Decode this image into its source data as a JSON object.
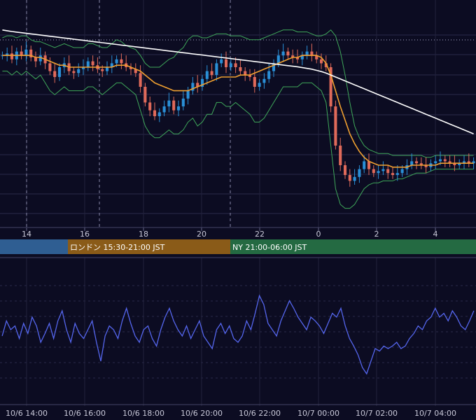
{
  "chart_data": [
    {
      "type": "candlestick",
      "panel": "price",
      "x_ticks": [
        "14",
        "16",
        "18",
        "20",
        "22",
        "0",
        "2",
        "4"
      ],
      "colors": {
        "up": "#2a8fd6",
        "down": "#e06a5a",
        "bollinger": "#3fa85a",
        "ma_short": "#f0a030",
        "ma_long": "#ffffff",
        "background": "#0c0c22",
        "grid": "#2a2a4a"
      },
      "y_range_rel": [
        0,
        100
      ],
      "series": [
        {
          "name": "close",
          "values": [
            86,
            87,
            84,
            88,
            86,
            89,
            85,
            83,
            86,
            82,
            78,
            75,
            80,
            82,
            78,
            77,
            79,
            80,
            83,
            81,
            79,
            78,
            80,
            82,
            84,
            82,
            80,
            79,
            77,
            70,
            62,
            58,
            55,
            57,
            60,
            63,
            58,
            60,
            64,
            68,
            72,
            70,
            74,
            78,
            76,
            82,
            84,
            80,
            82,
            80,
            78,
            76,
            75,
            70,
            72,
            74,
            78,
            82,
            86,
            88,
            86,
            85,
            84,
            86,
            88,
            86,
            84,
            82,
            80,
            60,
            40,
            30,
            25,
            22,
            24,
            28,
            32,
            28,
            26,
            27,
            28,
            26,
            25,
            26,
            28,
            30,
            32,
            31,
            30,
            29,
            31,
            32,
            33,
            32,
            31,
            30,
            31,
            32,
            31,
            32
          ]
        },
        {
          "name": "bb_upper",
          "values": [
            95,
            96,
            96,
            95,
            96,
            96,
            94,
            93,
            93,
            92,
            91,
            90,
            91,
            92,
            91,
            90,
            90,
            90,
            92,
            92,
            91,
            90,
            90,
            92,
            94,
            93,
            91,
            90,
            89,
            86,
            82,
            80,
            80,
            80,
            82,
            84,
            85,
            88,
            90,
            94,
            96,
            96,
            95,
            95,
            96,
            97,
            97,
            97,
            96,
            96,
            96,
            95,
            94,
            94,
            94,
            95,
            96,
            97,
            98,
            99,
            99,
            99,
            98,
            98,
            98,
            97,
            96,
            96,
            97,
            99,
            96,
            88,
            76,
            62,
            50,
            44,
            40,
            38,
            37,
            36,
            36,
            36,
            35,
            35,
            35,
            35,
            35,
            35,
            35,
            34,
            34,
            35,
            35,
            35,
            35,
            35,
            35,
            35,
            35,
            35
          ]
        },
        {
          "name": "bb_lower",
          "values": [
            78,
            78,
            76,
            78,
            76,
            78,
            76,
            74,
            76,
            72,
            68,
            66,
            68,
            70,
            68,
            68,
            68,
            68,
            70,
            70,
            68,
            66,
            68,
            70,
            72,
            72,
            70,
            68,
            66,
            58,
            50,
            46,
            44,
            44,
            46,
            48,
            46,
            46,
            48,
            52,
            54,
            50,
            52,
            56,
            56,
            62,
            62,
            60,
            60,
            62,
            60,
            58,
            56,
            52,
            52,
            54,
            58,
            62,
            66,
            70,
            70,
            70,
            70,
            72,
            72,
            72,
            70,
            68,
            62,
            40,
            18,
            10,
            8,
            8,
            10,
            14,
            18,
            20,
            21,
            21,
            22,
            22,
            22,
            23,
            23,
            24,
            25,
            26,
            26,
            26,
            27,
            28,
            28,
            28,
            28,
            28,
            28,
            28,
            28,
            28
          ]
        },
        {
          "name": "ma_short",
          "values": [
            86,
            86,
            86,
            86,
            86,
            86,
            86,
            85,
            85,
            84,
            83,
            82,
            81,
            81,
            80,
            80,
            80,
            80,
            80,
            80,
            80,
            80,
            80,
            80,
            81,
            81,
            81,
            80,
            79,
            78,
            76,
            74,
            72,
            71,
            70,
            69,
            68,
            68,
            68,
            68,
            69,
            70,
            71,
            72,
            73,
            74,
            75,
            75,
            75,
            75,
            76,
            76,
            76,
            77,
            78,
            79,
            80,
            81,
            82,
            83,
            84,
            85,
            85,
            86,
            86,
            86,
            86,
            85,
            82,
            76,
            68,
            60,
            53,
            46,
            41,
            37,
            34,
            32,
            31,
            30,
            30,
            30,
            29,
            29,
            29,
            29,
            30,
            30,
            30,
            30,
            30,
            30,
            31,
            31,
            31,
            31,
            31,
            31,
            31,
            31
          ]
        },
        {
          "name": "ma_long",
          "values": [
            99,
            98.6,
            98.2,
            97.9,
            97.6,
            97.3,
            97,
            96.7,
            96.4,
            96.1,
            95.8,
            95.5,
            95.2,
            94.9,
            94.6,
            94.3,
            94,
            93.7,
            93.4,
            93.1,
            92.8,
            92.5,
            92.2,
            91.9,
            91.6,
            91.3,
            91,
            90.7,
            90.4,
            90.1,
            89.8,
            89.5,
            89.2,
            88.9,
            88.6,
            88.3,
            88,
            87.7,
            87.4,
            87.1,
            86.8,
            86.5,
            86.2,
            85.9,
            85.6,
            85.3,
            85,
            84.7,
            84.4,
            84.1,
            83.8,
            83.5,
            83.2,
            82.9,
            82.6,
            82.3,
            82,
            81.7,
            81.4,
            81.1,
            80.8,
            80.5,
            80.2,
            79.8,
            79.4,
            79,
            78.4,
            77.8,
            77,
            76,
            75,
            74,
            73,
            72,
            71,
            70,
            69,
            68,
            67,
            66,
            65,
            64,
            63,
            62,
            61,
            60,
            59,
            58,
            57,
            56,
            55,
            54,
            53,
            52,
            51,
            50,
            49,
            48,
            47,
            46
          ]
        }
      ]
    },
    {
      "type": "line",
      "panel": "oscillator",
      "x_ticks": [
        "10/6 14:00",
        "10/6 16:00",
        "10/6 18:00",
        "10/6 20:00",
        "10/6 22:00",
        "10/7 00:00",
        "10/7 02:00",
        "10/7 04:00"
      ],
      "color": "#5566ee",
      "y_range_rel": [
        0,
        100
      ],
      "values": [
        50,
        62,
        55,
        58,
        48,
        60,
        52,
        65,
        58,
        45,
        52,
        60,
        48,
        62,
        70,
        55,
        45,
        60,
        52,
        48,
        55,
        62,
        45,
        30,
        50,
        58,
        55,
        48,
        62,
        72,
        60,
        50,
        45,
        55,
        58,
        48,
        42,
        55,
        65,
        72,
        62,
        55,
        50,
        58,
        48,
        55,
        62,
        50,
        45,
        40,
        55,
        60,
        52,
        58,
        48,
        45,
        50,
        62,
        55,
        68,
        82,
        75,
        60,
        55,
        50,
        62,
        70,
        78,
        72,
        65,
        60,
        55,
        65,
        62,
        58,
        52,
        60,
        68,
        65,
        72,
        58,
        48,
        42,
        35,
        25,
        20,
        30,
        40,
        38,
        42,
        40,
        42,
        45,
        40,
        42,
        48,
        52,
        58,
        55,
        62,
        65,
        72,
        65,
        68,
        62,
        70,
        65,
        58,
        55,
        62,
        70
      ]
    }
  ],
  "sessions": [
    {
      "label": "",
      "color": "#2f5e92"
    },
    {
      "label": "ロンドン 15:30-21:00 JST",
      "color": "#8a5b18"
    },
    {
      "label": "NY 21:00-06:00 JST",
      "color": "#246a42"
    }
  ]
}
